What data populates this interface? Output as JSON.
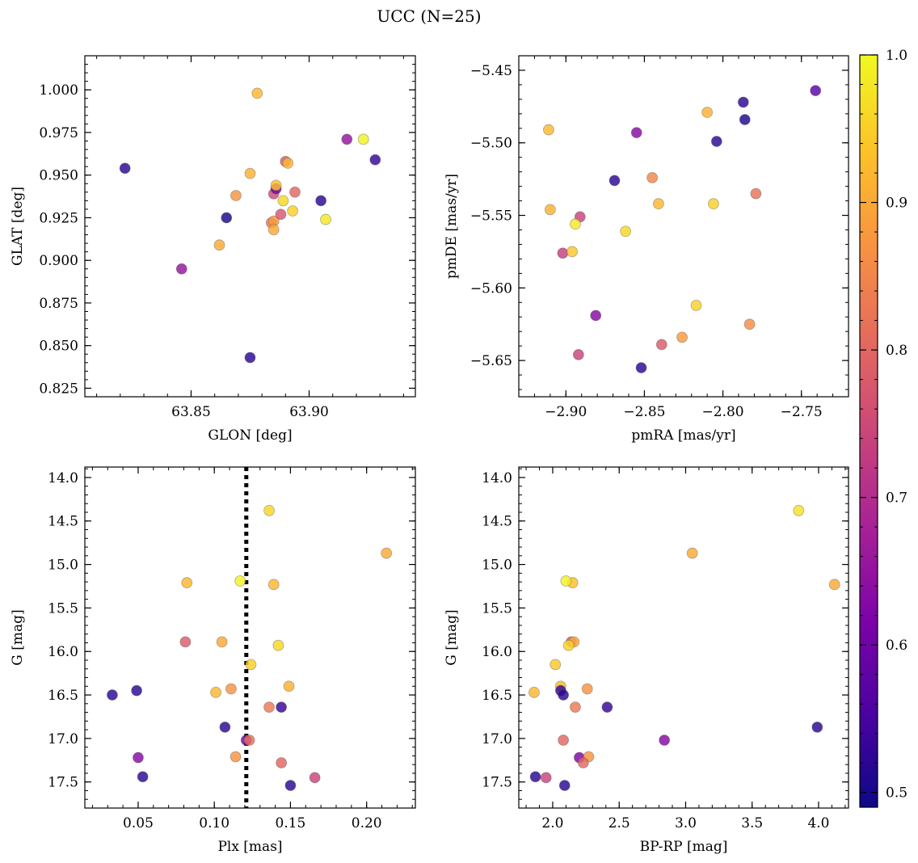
{
  "figure_title": "UCC (N=25)",
  "colorbar": {
    "min": 0.49,
    "max": 1.0,
    "ticks": [
      0.5,
      0.6,
      0.7,
      0.8,
      0.9,
      1.0
    ],
    "tick_labels": [
      "0.5",
      "0.6",
      "0.7",
      "0.8",
      "0.9",
      "1.0"
    ],
    "colormap": "plasma"
  },
  "chart_data": [
    {
      "type": "scatter",
      "xlabel": "GLON [deg]",
      "ylabel": "GLAT [deg]",
      "xlim": [
        63.805,
        63.945
      ],
      "ylim": [
        0.82,
        1.02
      ],
      "xticks": [
        63.85,
        63.9
      ],
      "xtick_labels": [
        "63.85",
        "63.90"
      ],
      "yticks": [
        0.825,
        0.85,
        0.875,
        0.9,
        0.925,
        0.95,
        0.975,
        1.0
      ],
      "ytick_labels": [
        "0.825",
        "0.850",
        "0.875",
        "0.900",
        "0.925",
        "0.950",
        "0.975",
        "1.000"
      ],
      "y_inverted": false,
      "points": [
        {
          "x": 63.822,
          "y": 0.954,
          "c": 0.52
        },
        {
          "x": 63.846,
          "y": 0.895,
          "c": 0.65
        },
        {
          "x": 63.862,
          "y": 0.909,
          "c": 0.9
        },
        {
          "x": 63.865,
          "y": 0.925,
          "c": 0.5
        },
        {
          "x": 63.869,
          "y": 0.938,
          "c": 0.87
        },
        {
          "x": 63.875,
          "y": 0.951,
          "c": 0.91
        },
        {
          "x": 63.875,
          "y": 0.843,
          "c": 0.52
        },
        {
          "x": 63.878,
          "y": 0.998,
          "c": 0.92
        },
        {
          "x": 63.884,
          "y": 0.922,
          "c": 0.83
        },
        {
          "x": 63.885,
          "y": 0.939,
          "c": 0.75
        },
        {
          "x": 63.886,
          "y": 0.942,
          "c": 0.6
        },
        {
          "x": 63.886,
          "y": 0.944,
          "c": 0.93
        },
        {
          "x": 63.885,
          "y": 0.923,
          "c": 0.88
        },
        {
          "x": 63.885,
          "y": 0.918,
          "c": 0.9
        },
        {
          "x": 63.888,
          "y": 0.927,
          "c": 0.77
        },
        {
          "x": 63.89,
          "y": 0.958,
          "c": 0.78
        },
        {
          "x": 63.891,
          "y": 0.957,
          "c": 0.92
        },
        {
          "x": 63.889,
          "y": 0.935,
          "c": 0.96
        },
        {
          "x": 63.893,
          "y": 0.929,
          "c": 0.95
        },
        {
          "x": 63.894,
          "y": 0.94,
          "c": 0.8
        },
        {
          "x": 63.905,
          "y": 0.935,
          "c": 0.52
        },
        {
          "x": 63.907,
          "y": 0.924,
          "c": 0.98
        },
        {
          "x": 63.916,
          "y": 0.971,
          "c": 0.65
        },
        {
          "x": 63.923,
          "y": 0.971,
          "c": 0.99
        },
        {
          "x": 63.928,
          "y": 0.959,
          "c": 0.53
        }
      ]
    },
    {
      "type": "scatter",
      "xlabel": "pmRA [mas/yr]",
      "ylabel": "pmDE [mas/yr]",
      "xlim": [
        -2.93,
        -2.72
      ],
      "ylim": [
        -5.675,
        -5.44
      ],
      "xticks": [
        -2.9,
        -2.85,
        -2.8,
        -2.75
      ],
      "xtick_labels": [
        "−2.90",
        "−2.85",
        "−2.80",
        "−2.75"
      ],
      "yticks": [
        -5.65,
        -5.6,
        -5.55,
        -5.5,
        -5.45
      ],
      "ytick_labels": [
        "−5.65",
        "−5.60",
        "−5.55",
        "−5.50",
        "−5.45"
      ],
      "y_inverted": false,
      "points": [
        {
          "x": -2.741,
          "y": -5.464,
          "c": 0.57
        },
        {
          "x": -2.787,
          "y": -5.472,
          "c": 0.52
        },
        {
          "x": -2.786,
          "y": -5.484,
          "c": 0.51
        },
        {
          "x": -2.804,
          "y": -5.499,
          "c": 0.52
        },
        {
          "x": -2.81,
          "y": -5.479,
          "c": 0.91
        },
        {
          "x": -2.855,
          "y": -5.493,
          "c": 0.63
        },
        {
          "x": -2.911,
          "y": -5.491,
          "c": 0.92
        },
        {
          "x": -2.869,
          "y": -5.526,
          "c": 0.52
        },
        {
          "x": -2.845,
          "y": -5.524,
          "c": 0.85
        },
        {
          "x": -2.841,
          "y": -5.542,
          "c": 0.92
        },
        {
          "x": -2.806,
          "y": -5.542,
          "c": 0.95
        },
        {
          "x": -2.779,
          "y": -5.535,
          "c": 0.82
        },
        {
          "x": -2.91,
          "y": -5.546,
          "c": 0.91
        },
        {
          "x": -2.891,
          "y": -5.551,
          "c": 0.74
        },
        {
          "x": -2.894,
          "y": -5.556,
          "c": 0.98
        },
        {
          "x": -2.862,
          "y": -5.561,
          "c": 0.96
        },
        {
          "x": -2.902,
          "y": -5.576,
          "c": 0.73
        },
        {
          "x": -2.896,
          "y": -5.575,
          "c": 0.94
        },
        {
          "x": -2.881,
          "y": -5.619,
          "c": 0.63
        },
        {
          "x": -2.817,
          "y": -5.612,
          "c": 0.95
        },
        {
          "x": -2.783,
          "y": -5.625,
          "c": 0.86
        },
        {
          "x": -2.826,
          "y": -5.634,
          "c": 0.88
        },
        {
          "x": -2.839,
          "y": -5.639,
          "c": 0.78
        },
        {
          "x": -2.892,
          "y": -5.646,
          "c": 0.74
        },
        {
          "x": -2.852,
          "y": -5.655,
          "c": 0.52
        }
      ]
    },
    {
      "type": "scatter",
      "xlabel": "Plx [mas]",
      "ylabel": "G [mag]",
      "xlim": [
        0.015,
        0.232
      ],
      "ylim": [
        17.8,
        13.88
      ],
      "xticks": [
        0.05,
        0.1,
        0.15,
        0.2
      ],
      "xtick_labels": [
        "0.05",
        "0.10",
        "0.15",
        "0.20"
      ],
      "yticks": [
        14.0,
        14.5,
        15.0,
        15.5,
        16.0,
        16.5,
        17.0,
        17.5
      ],
      "ytick_labels": [
        "14.0",
        "14.5",
        "15.0",
        "15.5",
        "16.0",
        "16.5",
        "17.0",
        "17.5"
      ],
      "y_inverted": true,
      "vline": {
        "x": 0.121,
        "style": "dotted",
        "color": "#000000"
      },
      "points": [
        {
          "x": 0.136,
          "y": 14.38,
          "c": 0.96
        },
        {
          "x": 0.213,
          "y": 14.87,
          "c": 0.9
        },
        {
          "x": 0.082,
          "y": 15.21,
          "c": 0.92
        },
        {
          "x": 0.117,
          "y": 15.19,
          "c": 0.99
        },
        {
          "x": 0.139,
          "y": 15.23,
          "c": 0.92
        },
        {
          "x": 0.081,
          "y": 15.89,
          "c": 0.78
        },
        {
          "x": 0.105,
          "y": 15.89,
          "c": 0.9
        },
        {
          "x": 0.142,
          "y": 15.93,
          "c": 0.96
        },
        {
          "x": 0.124,
          "y": 16.15,
          "c": 0.95
        },
        {
          "x": 0.149,
          "y": 16.4,
          "c": 0.91
        },
        {
          "x": 0.111,
          "y": 16.43,
          "c": 0.87
        },
        {
          "x": 0.101,
          "y": 16.47,
          "c": 0.92
        },
        {
          "x": 0.049,
          "y": 16.45,
          "c": 0.52
        },
        {
          "x": 0.033,
          "y": 16.5,
          "c": 0.52
        },
        {
          "x": 0.136,
          "y": 16.64,
          "c": 0.83
        },
        {
          "x": 0.144,
          "y": 16.64,
          "c": 0.53
        },
        {
          "x": 0.107,
          "y": 16.87,
          "c": 0.52
        },
        {
          "x": 0.121,
          "y": 17.02,
          "c": 0.6
        },
        {
          "x": 0.123,
          "y": 17.02,
          "c": 0.82
        },
        {
          "x": 0.05,
          "y": 17.22,
          "c": 0.63
        },
        {
          "x": 0.114,
          "y": 17.21,
          "c": 0.87
        },
        {
          "x": 0.144,
          "y": 17.28,
          "c": 0.8
        },
        {
          "x": 0.053,
          "y": 17.44,
          "c": 0.52
        },
        {
          "x": 0.166,
          "y": 17.45,
          "c": 0.74
        },
        {
          "x": 0.15,
          "y": 17.54,
          "c": 0.52
        }
      ]
    },
    {
      "type": "scatter",
      "xlabel": "BP-RP [mag]",
      "ylabel": "G [mag]",
      "xlim": [
        1.745,
        4.225
      ],
      "ylim": [
        17.8,
        13.88
      ],
      "xticks": [
        2.0,
        2.5,
        3.0,
        3.5,
        4.0
      ],
      "xtick_labels": [
        "2.0",
        "2.5",
        "3.0",
        "3.5",
        "4.0"
      ],
      "yticks": [
        14.0,
        14.5,
        15.0,
        15.5,
        16.0,
        16.5,
        17.0,
        17.5
      ],
      "ytick_labels": [
        "14.0",
        "14.5",
        "15.0",
        "15.5",
        "16.0",
        "16.5",
        "17.0",
        "17.5"
      ],
      "y_inverted": true,
      "points": [
        {
          "x": 3.85,
          "y": 14.38,
          "c": 0.97
        },
        {
          "x": 3.05,
          "y": 14.87,
          "c": 0.9
        },
        {
          "x": 4.12,
          "y": 15.23,
          "c": 0.9
        },
        {
          "x": 2.15,
          "y": 15.21,
          "c": 0.93
        },
        {
          "x": 2.1,
          "y": 15.19,
          "c": 0.99
        },
        {
          "x": 2.14,
          "y": 15.89,
          "c": 0.78
        },
        {
          "x": 2.16,
          "y": 15.89,
          "c": 0.9
        },
        {
          "x": 2.12,
          "y": 15.93,
          "c": 0.96
        },
        {
          "x": 2.02,
          "y": 16.15,
          "c": 0.94
        },
        {
          "x": 2.06,
          "y": 16.4,
          "c": 0.92
        },
        {
          "x": 2.26,
          "y": 16.43,
          "c": 0.87
        },
        {
          "x": 1.86,
          "y": 16.47,
          "c": 0.92
        },
        {
          "x": 2.06,
          "y": 16.45,
          "c": 0.52
        },
        {
          "x": 2.08,
          "y": 16.5,
          "c": 0.52
        },
        {
          "x": 2.17,
          "y": 16.64,
          "c": 0.83
        },
        {
          "x": 2.41,
          "y": 16.64,
          "c": 0.53
        },
        {
          "x": 3.99,
          "y": 16.87,
          "c": 0.52
        },
        {
          "x": 2.84,
          "y": 17.02,
          "c": 0.63
        },
        {
          "x": 2.08,
          "y": 17.02,
          "c": 0.8
        },
        {
          "x": 2.2,
          "y": 17.22,
          "c": 0.62
        },
        {
          "x": 2.27,
          "y": 17.21,
          "c": 0.87
        },
        {
          "x": 2.23,
          "y": 17.28,
          "c": 0.8
        },
        {
          "x": 1.87,
          "y": 17.44,
          "c": 0.52
        },
        {
          "x": 1.95,
          "y": 17.45,
          "c": 0.74
        },
        {
          "x": 2.09,
          "y": 17.54,
          "c": 0.52
        }
      ]
    }
  ]
}
